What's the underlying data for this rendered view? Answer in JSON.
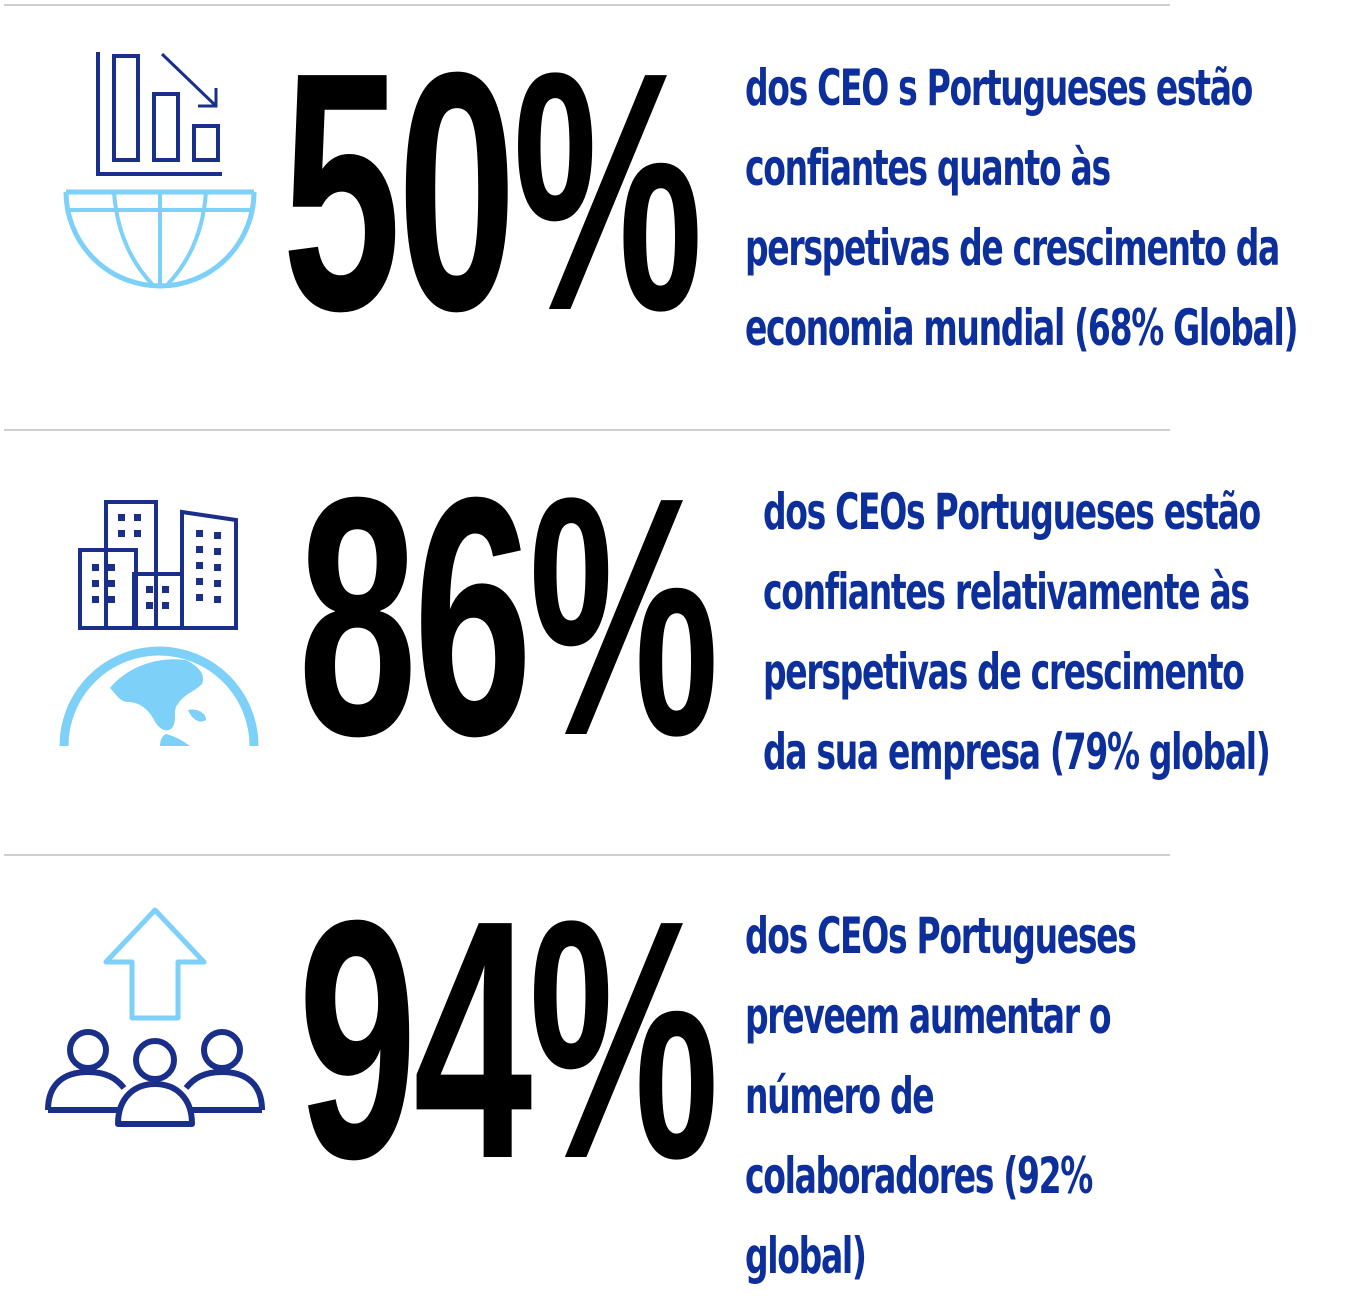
{
  "colors": {
    "dark_blue": "#0c2f9c",
    "navy_icon": "#1a2f8a",
    "light_blue": "#7dd0f7",
    "divider": "#cfcfcf",
    "stat": "#000000"
  },
  "stats": [
    {
      "value": "50%",
      "icon": "declining-chart-over-globe-icon",
      "lines": [
        "dos CEO s Portugueses  estão",
        "confiantes quanto às",
        "perspetivas de crescimento da",
        "economia mundial (68% Global)"
      ]
    },
    {
      "value": "86%",
      "icon": "buildings-over-globe-icon",
      "lines": [
        "dos CEOs  Portugueses estão",
        "confiantes relativamente às",
        "perspetivas de crescimento",
        "da sua empresa  (79% global)"
      ]
    },
    {
      "value": "94%",
      "icon": "people-with-up-arrow-icon",
      "lines": [
        "dos CEOs Portugueses",
        "preveem aumentar o",
        "número de",
        "colaboradores (92%",
        "global)"
      ]
    }
  ]
}
